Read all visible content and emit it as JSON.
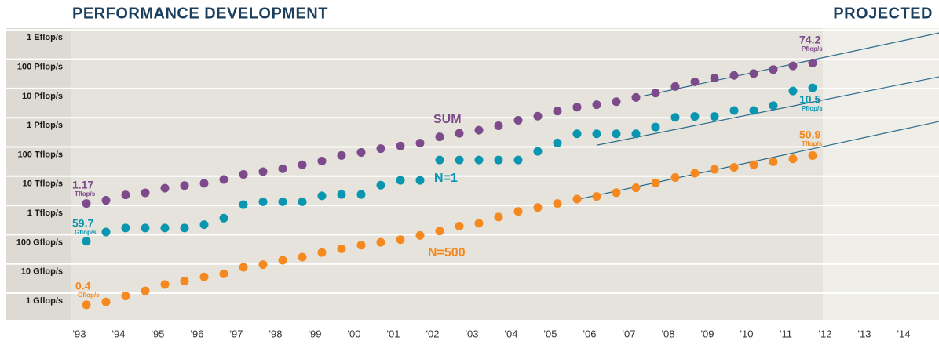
{
  "chart_data": {
    "type": "scatter",
    "title": "PERFORMANCE DEVELOPMENT",
    "subtitle": "PROJECTED",
    "log_y": true,
    "grid": true,
    "xlim": [
      1993.1,
      2015.22
    ],
    "xticks": [
      {
        "value": 1993,
        "label": "'93"
      },
      {
        "value": 1994,
        "label": "'94"
      },
      {
        "value": 1995,
        "label": "'95"
      },
      {
        "value": 1996,
        "label": "'96"
      },
      {
        "value": 1997,
        "label": "'97"
      },
      {
        "value": 1998,
        "label": "'98"
      },
      {
        "value": 1999,
        "label": "'99"
      },
      {
        "value": 2000,
        "label": "'00"
      },
      {
        "value": 2001,
        "label": "'01"
      },
      {
        "value": 2002,
        "label": "'02"
      },
      {
        "value": 2003,
        "label": "'03"
      },
      {
        "value": 2004,
        "label": "'04"
      },
      {
        "value": 2005,
        "label": "'05"
      },
      {
        "value": 2006,
        "label": "'06"
      },
      {
        "value": 2007,
        "label": "'07"
      },
      {
        "value": 2008,
        "label": "'08"
      },
      {
        "value": 2009,
        "label": "'09"
      },
      {
        "value": 2010,
        "label": "'10"
      },
      {
        "value": 2011,
        "label": "'11"
      },
      {
        "value": 2012,
        "label": "'12"
      },
      {
        "value": 2013,
        "label": "'13"
      },
      {
        "value": 2014,
        "label": "'14"
      }
    ],
    "ylim": [
      0.123,
      1150000000
    ],
    "yticks": [
      {
        "value": 1000000000,
        "label": "1 Eflop/s"
      },
      {
        "value": 100000000,
        "label": "100 Pflop/s"
      },
      {
        "value": 10000000,
        "label": "10 Pflop/s"
      },
      {
        "value": 1000000,
        "label": "1 Pflop/s"
      },
      {
        "value": 100000,
        "label": "100 Tflop/s"
      },
      {
        "value": 10000,
        "label": "10 Tflop/s"
      },
      {
        "value": 1000,
        "label": "1 Tflop/s"
      },
      {
        "value": 100,
        "label": "100 Gflop/s"
      },
      {
        "value": 10,
        "label": "10 Gflop/s"
      },
      {
        "value": 1,
        "label": "1 Gflop/s"
      }
    ],
    "x": [
      1993.5,
      1994,
      1994.5,
      1995,
      1995.5,
      1996,
      1996.5,
      1997,
      1997.5,
      1998,
      1998.5,
      1999,
      1999.5,
      2000,
      2000.5,
      2001,
      2001.5,
      2002,
      2002.5,
      2003,
      2003.5,
      2004,
      2004.5,
      2005,
      2005.5,
      2006,
      2006.5,
      2007,
      2007.5,
      2008,
      2008.5,
      2009,
      2009.5,
      2010,
      2010.5,
      2011,
      2011.5,
      2012
    ],
    "series": [
      {
        "name": "SUM",
        "color": "#7d4a8c",
        "values": [
          1170,
          1500,
          2300,
          2700,
          3900,
          4800,
          5700,
          7700,
          11500,
          14300,
          18000,
          24500,
          33000,
          51000,
          65000,
          88000,
          108000,
          135000,
          222000,
          293000,
          375000,
          528000,
          813000,
          1127000,
          1690000,
          2300000,
          2790000,
          3540000,
          4920000,
          6970000,
          11700000,
          16900000,
          22600000,
          27900000,
          32400000,
          44200000,
          58900000,
          74200000
        ],
        "value_labels": {
          "0": "1.17",
          "37": "74.2"
        },
        "value_label_units": {
          "0": "Tflop/s",
          "37": "Pflop/s"
        },
        "projection": {
          "x": [
            2007.7,
            2015.22
          ],
          "values": [
            5600000,
            790000000
          ]
        }
      },
      {
        "name": "N=1",
        "color": "#0a95b0",
        "values": [
          59.7,
          124,
          170,
          170,
          170,
          170,
          220.4,
          368.2,
          1068,
          1338,
          1338,
          1338,
          2121,
          2379,
          2379,
          4938,
          7226,
          7226,
          35860,
          35860,
          35860,
          35860,
          35860,
          70720,
          136800,
          280600,
          280600,
          280600,
          280600,
          478200,
          1026000,
          1105000,
          1105000,
          1759000,
          1759000,
          2566000,
          8162000,
          10510000
        ],
        "value_labels": {
          "0": "59.7",
          "37": "10.5"
        },
        "value_label_units": {
          "0": "Gflop/s",
          "37": "Pflop/s"
        },
        "projection": {
          "x": [
            2006.5,
            2015.22
          ],
          "values": [
            115000,
            25000000
          ]
        }
      },
      {
        "name": "N=500",
        "color": "#f5891f",
        "values": [
          0.4,
          0.5,
          0.8,
          1.2,
          2.0,
          2.6,
          3.6,
          4.6,
          7.7,
          9.5,
          13.4,
          17.1,
          24.7,
          33.1,
          43.8,
          55.1,
          67.8,
          94.3,
          134,
          196,
          245,
          403,
          624,
          851,
          1166,
          1646,
          2026,
          2737,
          4005,
          5929,
          9000,
          12640,
          17100,
          20050,
          24670,
          31120,
          39100,
          50900
        ],
        "value_labels": {
          "0": "0.4",
          "37": "50.9"
        },
        "value_label_units": {
          "0": "Gflop/s",
          "37": "Tflop/s"
        },
        "projection": {
          "x": [
            2006.1,
            2015.22
          ],
          "values": [
            1700,
            740000
          ]
        }
      }
    ]
  }
}
